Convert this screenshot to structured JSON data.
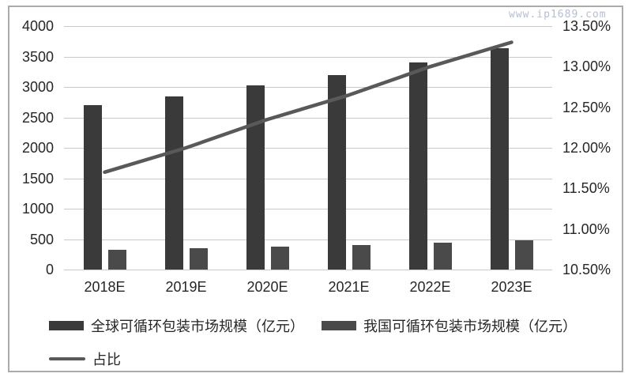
{
  "watermark": "www.ip1689.com",
  "colors": {
    "bar_global": "#3a3a3a",
    "bar_china": "#4a4a4a",
    "ratio_line": "#595959",
    "gridline": "#c9c9c9",
    "axis_text": "#262626",
    "watermark": "#b3bddc",
    "frame_border": "#ababab"
  },
  "chart_data": {
    "type": "bar",
    "subtype": "grouped-bars-with-line",
    "categories": [
      "2018E",
      "2019E",
      "2020E",
      "2021E",
      "2022E",
      "2023E"
    ],
    "series": [
      {
        "name": "全球可循环包装市场规模（亿元）",
        "type": "bar",
        "axis": "left",
        "color": "#3a3a3a",
        "values": [
          2700,
          2850,
          3020,
          3200,
          3400,
          3640
        ]
      },
      {
        "name": "我国可循环包装市场规模（亿元）",
        "type": "bar",
        "axis": "left",
        "color": "#4a4a4a",
        "values": [
          320,
          350,
          380,
          400,
          440,
          480
        ]
      },
      {
        "name": "占比",
        "type": "line",
        "axis": "right",
        "color": "#595959",
        "values": [
          11.7,
          12.0,
          12.35,
          12.65,
          13.0,
          13.3
        ]
      }
    ],
    "left_axis": {
      "min": 0,
      "max": 4000,
      "step": 500,
      "tick_labels": [
        "4000",
        "3500",
        "3000",
        "2500",
        "2000",
        "1500",
        "1000",
        "500",
        "0"
      ]
    },
    "right_axis": {
      "min": 10.5,
      "max": 13.5,
      "step": 0.5,
      "tick_labels": [
        "13.50%",
        "13.00%",
        "12.50%",
        "12.00%",
        "11.50%",
        "11.00%",
        "10.50%"
      ]
    },
    "grid": true,
    "legend_position": "bottom-left",
    "title": "",
    "xlabel": "",
    "ylabel": ""
  }
}
